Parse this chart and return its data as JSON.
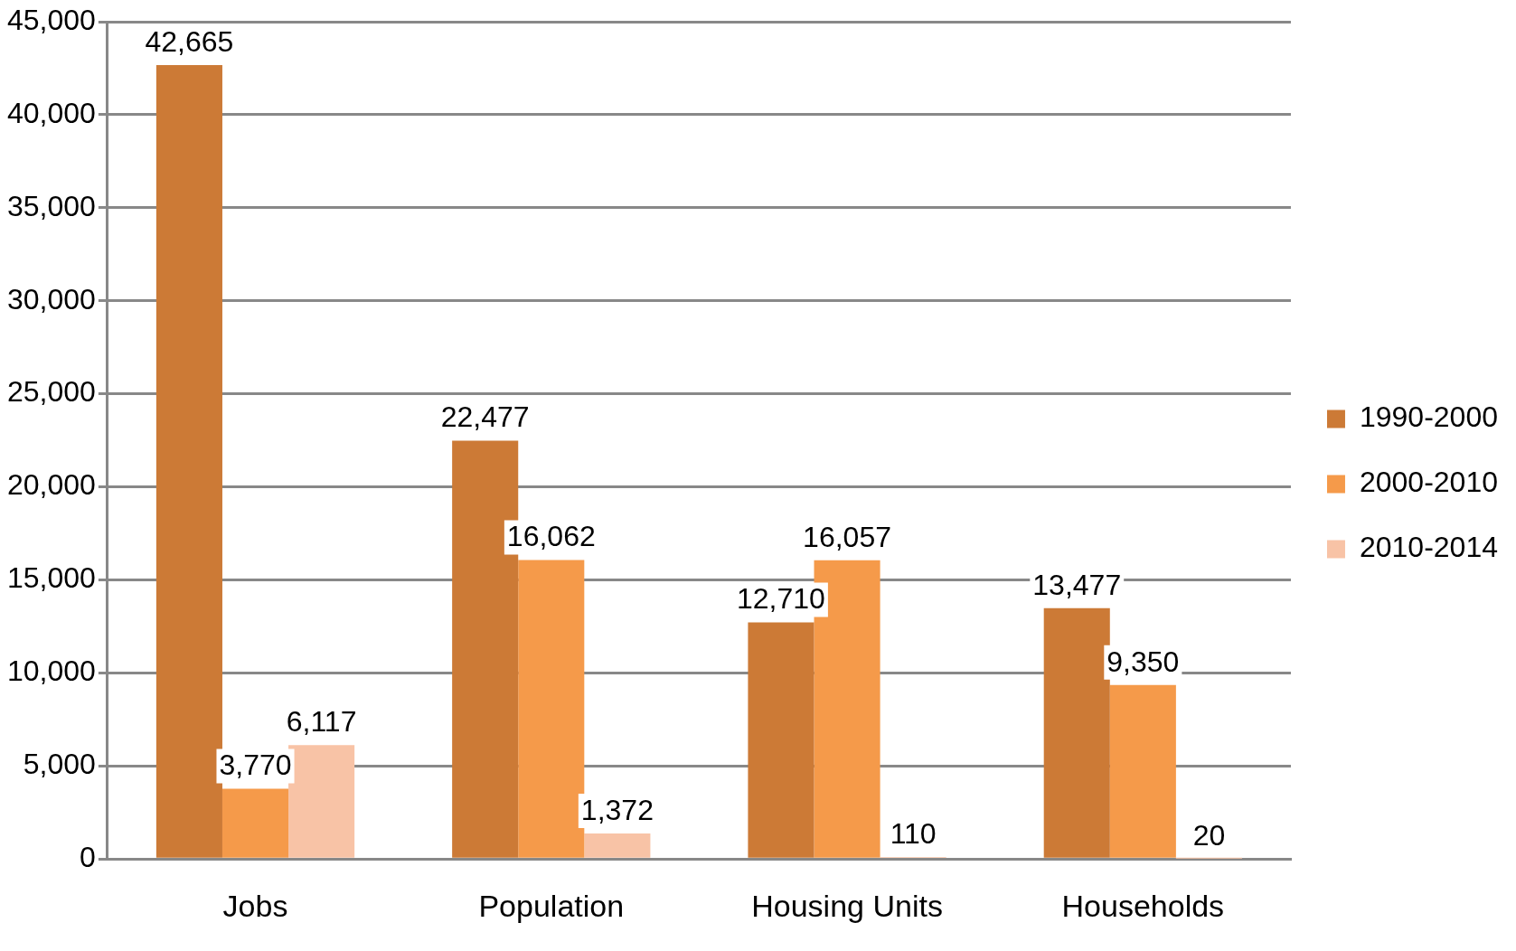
{
  "chart_data": {
    "type": "bar",
    "categories": [
      "Jobs",
      "Population",
      "Housing Units",
      "Households"
    ],
    "series": [
      {
        "name": "1990-2000",
        "color": "#cc7a36",
        "values": [
          42665,
          22477,
          12710,
          13477
        ],
        "value_labels": [
          "42,665",
          "22,477",
          "12,710",
          "13,477"
        ]
      },
      {
        "name": "2000-2010",
        "color": "#f59a4a",
        "values": [
          3770,
          16062,
          16057,
          9350
        ],
        "value_labels": [
          "3,770",
          "16,062",
          "16,057",
          "9,350"
        ]
      },
      {
        "name": "2010-2014",
        "color": "#f8c3a6",
        "values": [
          6117,
          1372,
          110,
          20
        ],
        "value_labels": [
          "6,117",
          "1,372",
          "110",
          "20"
        ]
      }
    ],
    "ylim": [
      0,
      45000
    ],
    "yticks": [
      {
        "value": 0,
        "label": "0"
      },
      {
        "value": 5000,
        "label": "5,000"
      },
      {
        "value": 10000,
        "label": "10,000"
      },
      {
        "value": 15000,
        "label": "15,000"
      },
      {
        "value": 20000,
        "label": "20,000"
      },
      {
        "value": 25000,
        "label": "25,000"
      },
      {
        "value": 30000,
        "label": "30,000"
      },
      {
        "value": 35000,
        "label": "35,000"
      },
      {
        "value": 40000,
        "label": "40,000"
      },
      {
        "value": 45000,
        "label": "45,000"
      }
    ],
    "grid": "y",
    "legend": "right"
  }
}
